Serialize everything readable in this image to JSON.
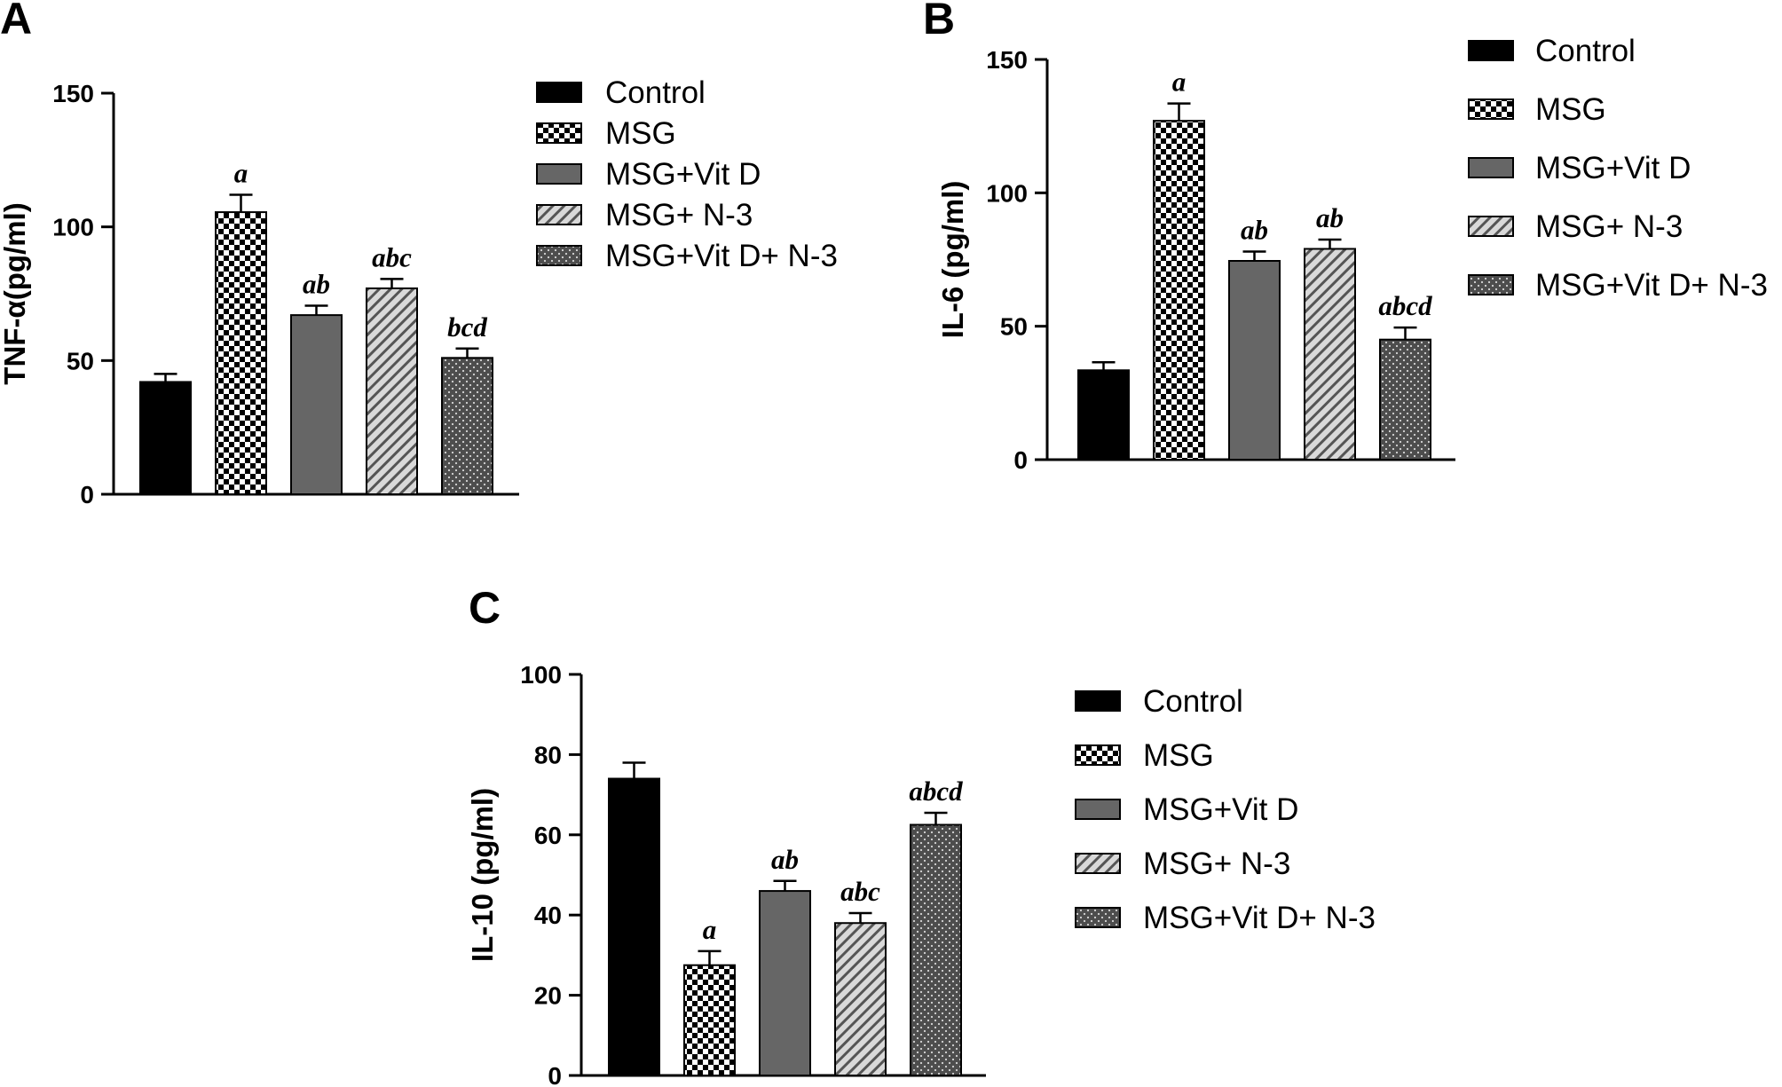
{
  "colors": {
    "control": "#000000",
    "msg_check": "#000000",
    "vitd": "#666666",
    "n3_stripe": "#555555",
    "combo_dots": "#4d4d4d",
    "axis": "#000000"
  },
  "chart_data": [
    {
      "type": "bar",
      "panel": "A",
      "ylabel": "TNF-α(pg/ml)",
      "xlabel": "",
      "ylim": [
        0,
        150
      ],
      "yticks": [
        "0",
        "50",
        "100",
        "150"
      ],
      "categories": [
        "Control",
        "MSG",
        "MSG+Vit D",
        "MSG+ N-3",
        "MSG+Vit D+ N-3"
      ],
      "values": [
        42,
        105.5,
        67,
        77,
        51
      ],
      "errors": [
        3,
        6.5,
        3.5,
        3.5,
        3.5
      ],
      "significance": [
        "",
        "a",
        "ab",
        "abc",
        "bcd"
      ],
      "legend": [
        "Control",
        "MSG",
        "MSG+Vit D",
        "MSG+ N-3",
        "MSG+Vit D+ N-3"
      ]
    },
    {
      "type": "bar",
      "panel": "B",
      "ylabel": "IL-6 (pg/ml)",
      "xlabel": "",
      "ylim": [
        0,
        150
      ],
      "yticks": [
        "0",
        "50",
        "100",
        "150"
      ],
      "categories": [
        "Control",
        "MSG",
        "MSG+Vit D",
        "MSG+ N-3",
        "MSG+Vit D+ N-3"
      ],
      "values": [
        33.5,
        127,
        74.5,
        79,
        45
      ],
      "errors": [
        3,
        6.5,
        3.5,
        3.5,
        4.5
      ],
      "significance": [
        "",
        "a",
        "ab",
        "ab",
        "abcd"
      ],
      "legend": [
        "Control",
        "MSG",
        "MSG+Vit D",
        "MSG+ N-3",
        "MSG+Vit D+ N-3"
      ]
    },
    {
      "type": "bar",
      "panel": "C",
      "ylabel": "IL-10 (pg/ml)",
      "xlabel": "",
      "ylim": [
        0,
        100
      ],
      "yticks": [
        "0",
        "20",
        "40",
        "60",
        "80",
        "100"
      ],
      "categories": [
        "Control",
        "MSG",
        "MSG+Vit D",
        "MSG+ N-3",
        "MSG+Vit D+ N-3"
      ],
      "values": [
        74,
        27.5,
        46,
        38,
        62.5
      ],
      "errors": [
        4,
        3.5,
        2.5,
        2.5,
        3
      ],
      "significance": [
        "",
        "a",
        "ab",
        "abc",
        "abcd"
      ],
      "legend": [
        "Control",
        "MSG",
        "MSG+Vit D",
        "MSG+ N-3",
        "MSG+Vit D+ N-3"
      ]
    }
  ]
}
